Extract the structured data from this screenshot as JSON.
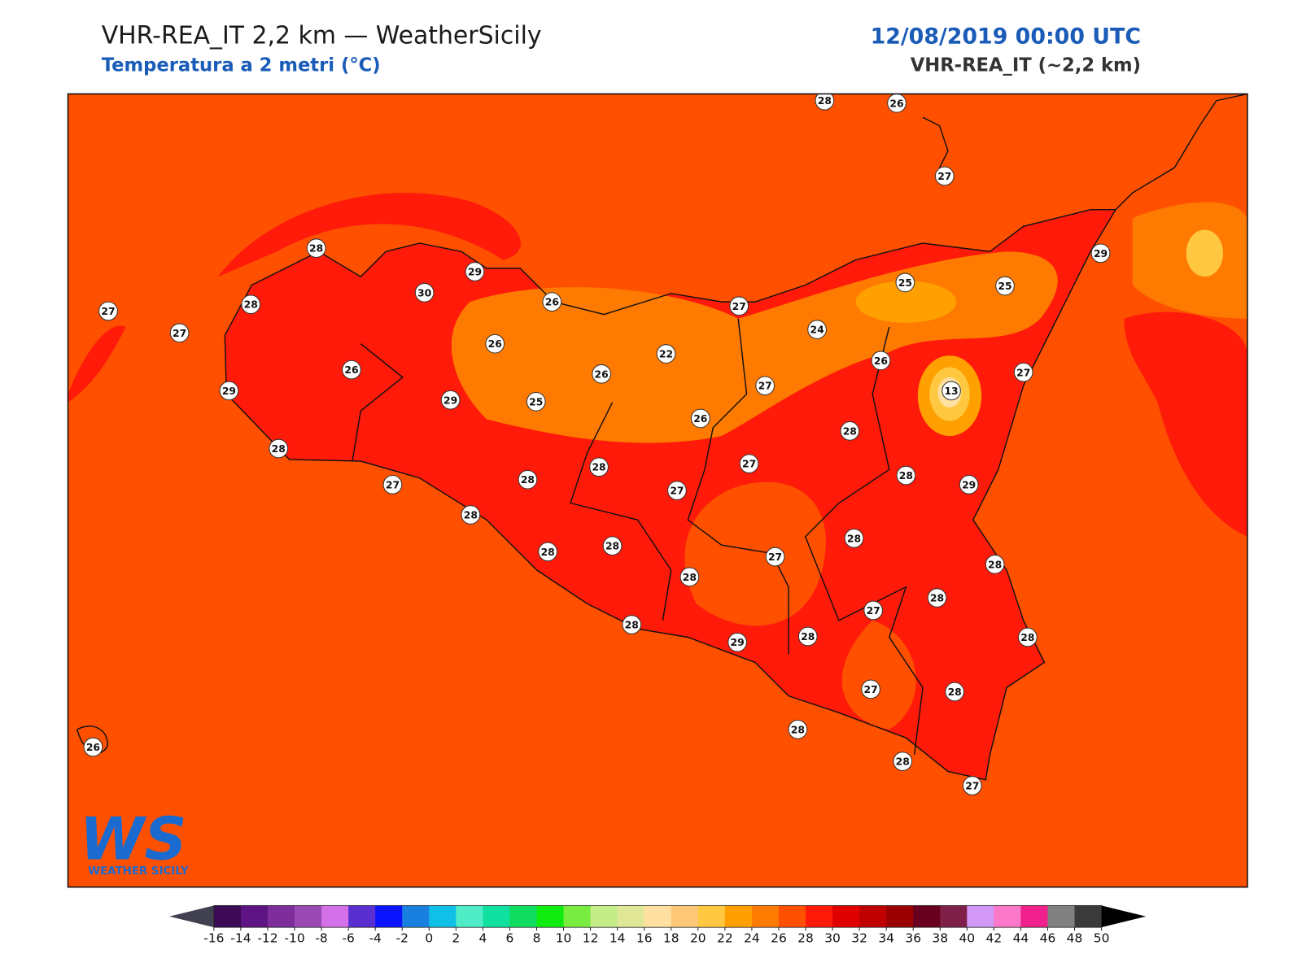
{
  "header": {
    "title": "VHR-REA_IT 2,2 km — WeatherSicily",
    "subtitle": "Temperatura a 2 metri (°C)",
    "date": "12/08/2019 00:00 UTC",
    "model": "VHR-REA_IT (~2,2 km)"
  },
  "logo": {
    "mark": "WS",
    "name": "WEATHER SICILY"
  },
  "stations": [
    28,
    26,
    27,
    28,
    29,
    30,
    26,
    27,
    25,
    25,
    29,
    27,
    28,
    27,
    24,
    26,
    22,
    26,
    26,
    26,
    27,
    29,
    29,
    25,
    27,
    13,
    26,
    28,
    28,
    27,
    28,
    28,
    29,
    27,
    28,
    27,
    28,
    28,
    28,
    28,
    28,
    27,
    28,
    28,
    27,
    28,
    29,
    28,
    28,
    27,
    28,
    28,
    28,
    27,
    26
  ],
  "colorbar": {
    "ticks": [
      -16,
      -14,
      -12,
      -10,
      -8,
      -6,
      -4,
      -2,
      0,
      2,
      4,
      6,
      8,
      10,
      12,
      14,
      16,
      18,
      20,
      22,
      24,
      26,
      28,
      30,
      32,
      34,
      36,
      38,
      40,
      42,
      44,
      46,
      48,
      50
    ],
    "colors": [
      "#3d0a55",
      "#5e1483",
      "#7d2e9a",
      "#9a4ab5",
      "#d470e8",
      "#5a2fd0",
      "#0a14ff",
      "#1a80e0",
      "#10c0e6",
      "#50ecc8",
      "#10e0a0",
      "#10dc60",
      "#10ec10",
      "#78ec40",
      "#c4ec88",
      "#e0e898",
      "#ffe0a0",
      "#fcc878",
      "#ffc840",
      "#ffa000",
      "#ff7a00",
      "#ff5000",
      "#ff1a0a",
      "#e00000",
      "#c00000",
      "#9a0000",
      "#6a0020",
      "#7e2048",
      "#d298f8",
      "#fc78c8",
      "#f0208c",
      "#808080",
      "#3a3a3a"
    ],
    "under_color": "#404050",
    "over_color": "#000000"
  }
}
